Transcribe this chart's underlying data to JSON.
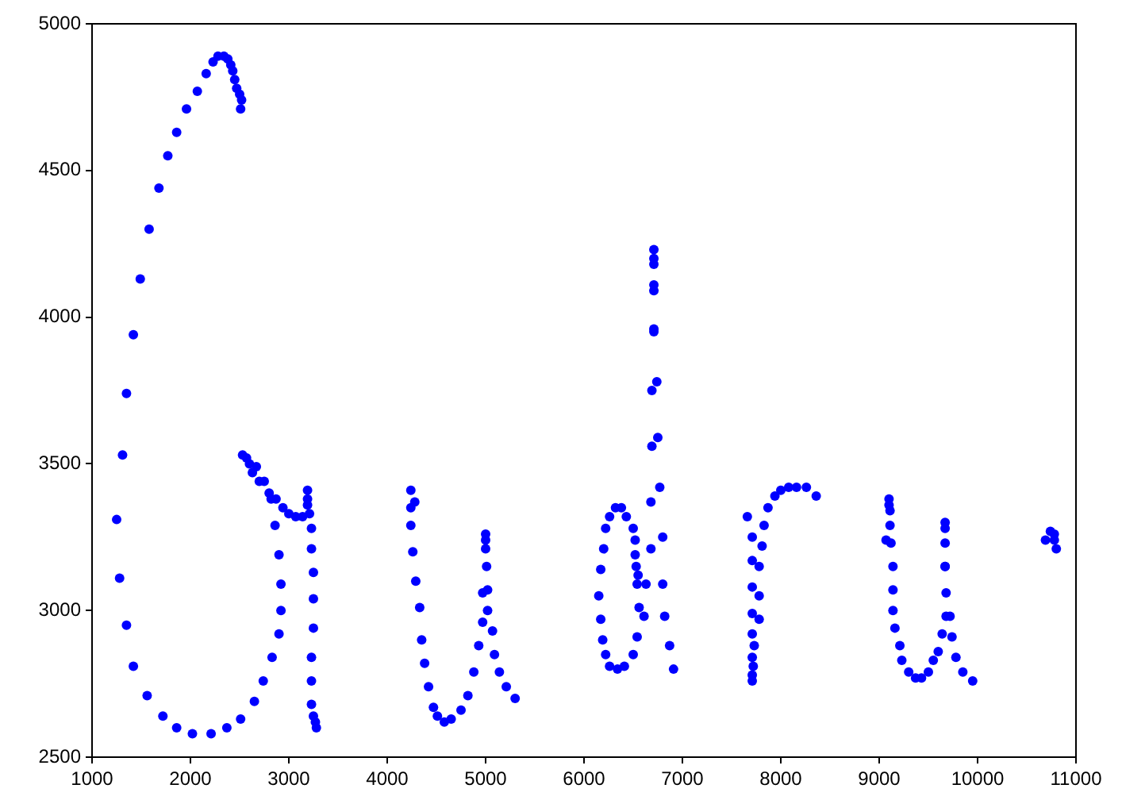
{
  "chart_data": {
    "type": "scatter",
    "marker": "circle",
    "grid": false,
    "xlim": [
      1000,
      11000
    ],
    "xticks": [
      1000,
      2000,
      3000,
      4000,
      5000,
      6000,
      7000,
      8000,
      9000,
      10000,
      11000
    ],
    "ylim": [
      2500,
      5000
    ],
    "yticks": [
      2500,
      3000,
      3500,
      4000,
      4500,
      5000
    ],
    "series": [
      {
        "color": "#0000ff",
        "x": [
          1350,
          1420,
          1490,
          1580,
          1680,
          1770,
          1860,
          1960,
          2070,
          2160,
          2230,
          2280,
          2340,
          2380,
          2410,
          2430,
          2450,
          2470,
          2500,
          2520,
          2510,
          1310,
          1250,
          1280,
          1350,
          1420,
          1560,
          1720,
          1860,
          2020,
          2210,
          2370,
          2510,
          2650,
          2740,
          2830,
          2900,
          2920,
          2920,
          2900,
          2860,
          2530,
          2570,
          2600,
          2670,
          2630,
          2700,
          2750,
          2800,
          2820,
          2870,
          2940,
          3000,
          3070,
          3140,
          3210,
          3190,
          3190,
          3190,
          3230,
          3230,
          3250,
          3250,
          3250,
          3230,
          3230,
          3230,
          3250,
          3270,
          3280,
          4240,
          4240,
          4280,
          4240,
          4260,
          4290,
          4330,
          4350,
          4380,
          4420,
          4470,
          4510,
          4580,
          4650,
          4750,
          4820,
          4880,
          4930,
          4970,
          5020,
          5020,
          4970,
          5010,
          5000,
          5000,
          5000,
          5070,
          5090,
          5140,
          5210,
          5300,
          6150,
          6170,
          6200,
          6220,
          6260,
          6320,
          6380,
          6430,
          6500,
          6520,
          6520,
          6530,
          6550,
          6540,
          6630,
          6560,
          6610,
          6540,
          6500,
          6410,
          6340,
          6260,
          6220,
          6190,
          6170,
          6750,
          6690,
          6770,
          6680,
          6800,
          6680,
          6800,
          6820,
          6870,
          6910,
          6710,
          6710,
          6710,
          6710,
          6710,
          6710,
          6710,
          6740,
          6690,
          7710,
          7710,
          7720,
          7710,
          7730,
          7710,
          7780,
          7710,
          7780,
          7710,
          7780,
          7710,
          7810,
          7710,
          7830,
          7660,
          7870,
          7940,
          8000,
          8080,
          8160,
          8260,
          8360,
          9100,
          9100,
          9110,
          9110,
          9070,
          9120,
          9140,
          9140,
          9140,
          9160,
          9210,
          9230,
          9300,
          9370,
          9430,
          9500,
          9550,
          9600,
          9640,
          9680,
          9720,
          9680,
          9670,
          9670,
          9670,
          9670,
          9670,
          9740,
          9780,
          9850,
          9950,
          10740,
          10780,
          10690,
          10780,
          10800
        ],
        "values": [
          3740,
          3940,
          4130,
          4300,
          4440,
          4550,
          4630,
          4710,
          4770,
          4830,
          4870,
          4890,
          4890,
          4880,
          4860,
          4840,
          4810,
          4780,
          4760,
          4740,
          4710,
          3530,
          3310,
          3110,
          2950,
          2810,
          2710,
          2640,
          2600,
          2580,
          2580,
          2600,
          2630,
          2690,
          2760,
          2840,
          2920,
          3000,
          3090,
          3190,
          3290,
          3530,
          3520,
          3500,
          3490,
          3470,
          3440,
          3440,
          3400,
          3380,
          3380,
          3350,
          3330,
          3320,
          3320,
          3330,
          3360,
          3380,
          3410,
          3280,
          3210,
          3130,
          3040,
          2940,
          2840,
          2760,
          2680,
          2640,
          2620,
          2600,
          3410,
          3350,
          3370,
          3290,
          3200,
          3100,
          3010,
          2900,
          2820,
          2740,
          2670,
          2640,
          2620,
          2630,
          2660,
          2710,
          2790,
          2880,
          2960,
          3000,
          3070,
          3060,
          3150,
          3210,
          3240,
          3260,
          2930,
          2850,
          2790,
          2740,
          2700,
          3050,
          3140,
          3210,
          3280,
          3320,
          3350,
          3350,
          3320,
          3280,
          3240,
          3190,
          3150,
          3120,
          3090,
          3090,
          3010,
          2980,
          2910,
          2850,
          2810,
          2800,
          2810,
          2850,
          2900,
          2970,
          3590,
          3560,
          3420,
          3370,
          3250,
          3210,
          3090,
          2980,
          2880,
          2800,
          4230,
          4200,
          4180,
          4110,
          4090,
          3960,
          3950,
          3780,
          3750,
          2760,
          2780,
          2810,
          2840,
          2880,
          2920,
          2970,
          2990,
          3050,
          3080,
          3150,
          3170,
          3220,
          3250,
          3290,
          3320,
          3350,
          3390,
          3410,
          3420,
          3420,
          3420,
          3390,
          3380,
          3360,
          3340,
          3290,
          3240,
          3230,
          3150,
          3070,
          3000,
          2940,
          2880,
          2830,
          2790,
          2770,
          2770,
          2790,
          2830,
          2860,
          2920,
          2980,
          2980,
          3060,
          3150,
          3150,
          3230,
          3280,
          3300,
          2910,
          2840,
          2790,
          2760,
          3270,
          3260,
          3240,
          3240,
          3210
        ]
      }
    ]
  }
}
